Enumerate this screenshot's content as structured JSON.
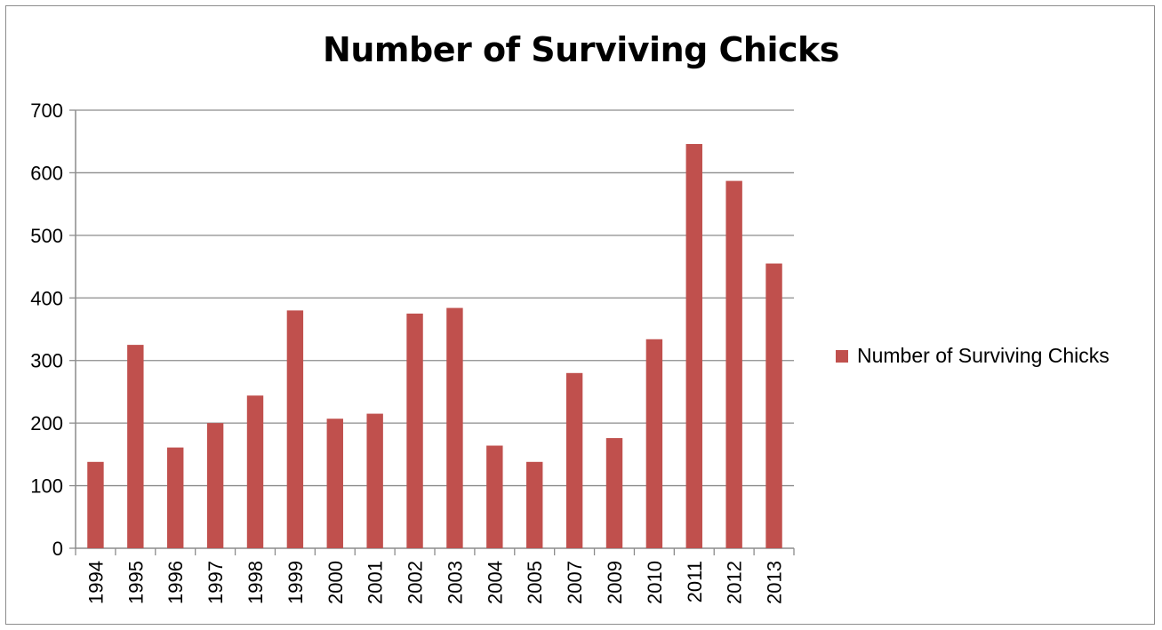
{
  "chart_data": {
    "type": "bar",
    "title": "Number of Surviving Chicks",
    "categories": [
      "1994",
      "1995",
      "1996",
      "1997",
      "1998",
      "1999",
      "2000",
      "2001",
      "2002",
      "2003",
      "2004",
      "2005",
      "2007",
      "2009",
      "2010",
      "2011",
      "2012",
      "2013"
    ],
    "series": [
      {
        "name": "Number of Surviving Chicks",
        "color": "#c0504d",
        "values": [
          138,
          325,
          161,
          200,
          244,
          380,
          207,
          215,
          375,
          384,
          164,
          138,
          280,
          176,
          334,
          646,
          587,
          455
        ]
      }
    ],
    "yticks": [
      0,
      100,
      200,
      300,
      400,
      500,
      600,
      700
    ],
    "ylim": [
      0,
      700
    ],
    "grid": true,
    "legend_position": "right",
    "xlabel": "",
    "ylabel": ""
  }
}
